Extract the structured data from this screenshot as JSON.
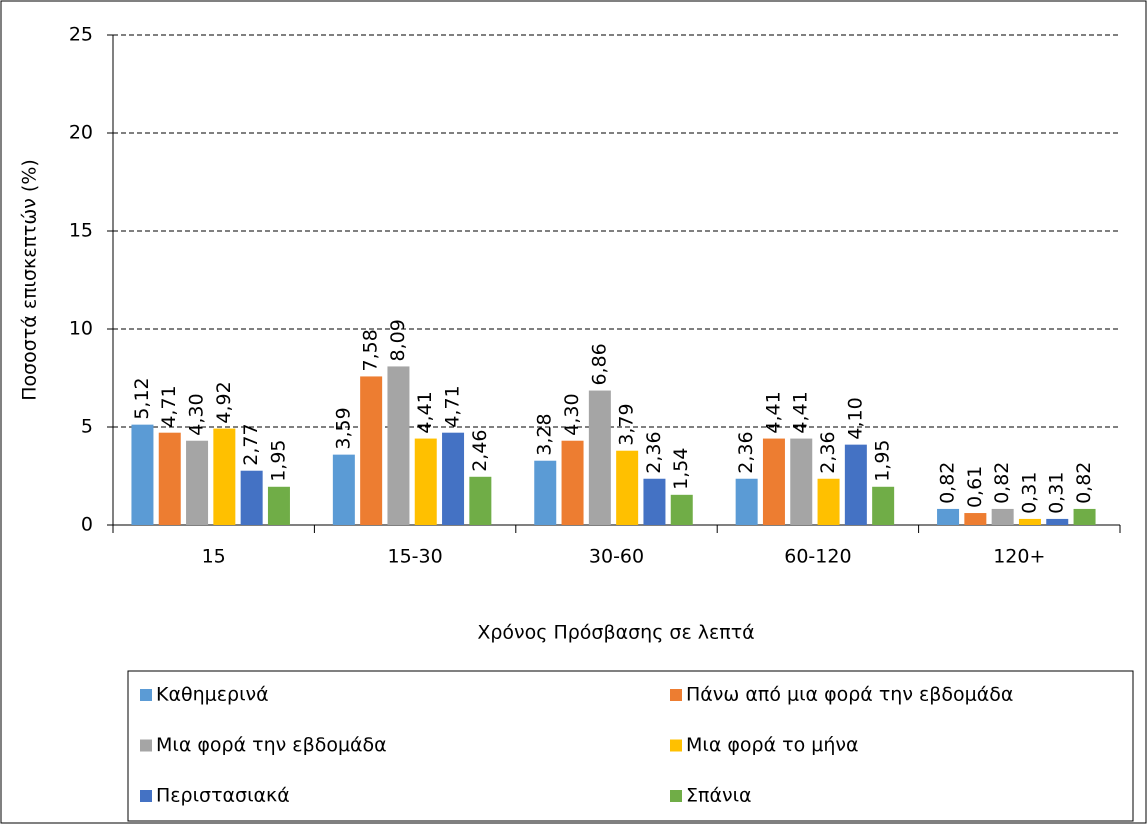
{
  "chart_data": {
    "type": "bar",
    "y_label": "Ποσοστά επισκεπτών (%)",
    "x_label": "Χρόνος Πρόσβασης σε λεπτά",
    "categories": [
      "15",
      "15-30",
      "30-60",
      "60-120",
      "120+"
    ],
    "series": [
      {
        "name": "Καθημερινά",
        "color": "#5b9bd5",
        "values": [
          5.12,
          3.59,
          3.28,
          2.36,
          0.82
        ],
        "value_labels": [
          "5,12",
          "3,59",
          "3,28",
          "2,36",
          "0,82"
        ]
      },
      {
        "name": "Πάνω από μια φορά την εβδομάδα",
        "color": "#ed7d31",
        "values": [
          4.71,
          7.58,
          4.3,
          4.41,
          0.61
        ],
        "value_labels": [
          "4,71",
          "7,58",
          "4,30",
          "4,41",
          "0,61"
        ]
      },
      {
        "name": "Μια φορά την εβδομάδα",
        "color": "#a5a5a5",
        "values": [
          4.3,
          8.09,
          6.86,
          4.41,
          0.82
        ],
        "value_labels": [
          "4,30",
          "8,09",
          "6,86",
          "4,41",
          "0,82"
        ]
      },
      {
        "name": "Μια φορά το μήνα",
        "color": "#ffc000",
        "values": [
          4.92,
          4.41,
          3.79,
          2.36,
          0.31
        ],
        "value_labels": [
          "4,92",
          "4,41",
          "3,79",
          "2,36",
          "0,31"
        ]
      },
      {
        "name": "Περιστασιακά",
        "color": "#4472c4",
        "values": [
          2.77,
          4.71,
          2.36,
          4.1,
          0.31
        ],
        "value_labels": [
          "2,77",
          "4,71",
          "2,36",
          "4,10",
          "0,31"
        ]
      },
      {
        "name": "Σπάνια",
        "color": "#70ad47",
        "values": [
          1.95,
          2.46,
          1.54,
          1.95,
          0.82
        ],
        "value_labels": [
          "1,95",
          "2,46",
          "1,54",
          "1,95",
          "0,82"
        ]
      }
    ],
    "ylim": [
      0,
      25
    ],
    "yticks": [
      0,
      5,
      10,
      15,
      20,
      25
    ],
    "grid": true,
    "legend": "bottom"
  }
}
